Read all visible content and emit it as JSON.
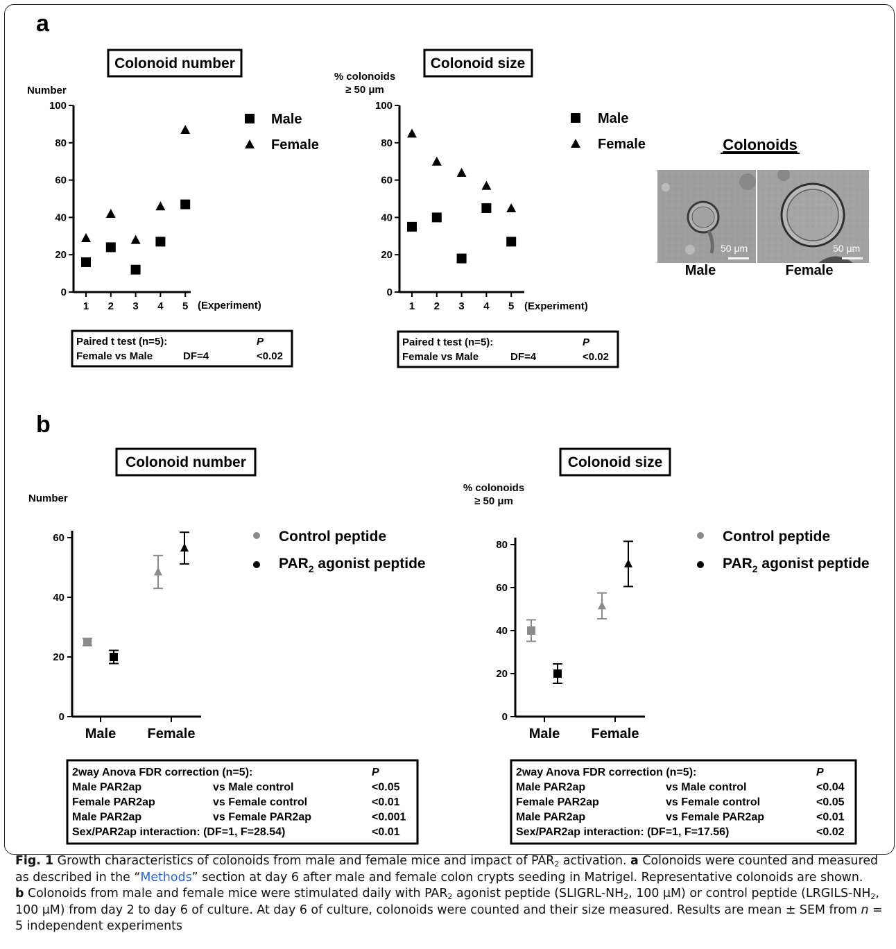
{
  "panel_a": {
    "label": "a",
    "number_title": "Colonoid number",
    "size_title": "Colonoid size",
    "number_ylabel": "Number",
    "size_ylabel_1": "% colonoids",
    "size_ylabel_2": "≥ 50 μm",
    "xlabel": "(Experiment)",
    "legend": [
      "Male",
      "Female"
    ],
    "images_title": "Colonoids",
    "image_labels": [
      "Male",
      "Female"
    ],
    "scalebar": "50 μm",
    "stats_box": {
      "title": "Paired t test (n=5):",
      "p_header": "P",
      "row_label": "Female vs Male",
      "row_df": "DF=4",
      "row_p": "<0.02"
    }
  },
  "panel_b": {
    "label": "b",
    "number_title": "Colonoid number",
    "size_title": "Colonoid size",
    "number_ylabel": "Number",
    "size_ylabel_1": "% colonoids",
    "size_ylabel_2": "≥ 50 μm",
    "legend_control": "Control peptide",
    "legend_par_prefix": "PAR",
    "legend_par_sub": "2",
    "legend_par_suffix": " agonist peptide",
    "left_box": {
      "title": "2way Anova FDR correction (n=5):",
      "p_header": "P",
      "rows": [
        [
          "Male PAR2ap",
          "vs Male control",
          "<0.05"
        ],
        [
          "Female PAR2ap",
          "vs Female control",
          "<0.01"
        ],
        [
          "Male PAR2ap",
          "vs Female PAR2ap",
          "<0.001"
        ],
        [
          "Sex/PAR2ap  interaction: (DF=1, F=28.54)",
          "",
          "<0.01"
        ]
      ]
    },
    "right_box": {
      "title": "2way Anova FDR correction (n=5):",
      "p_header": "P",
      "rows": [
        [
          "Male PAR2ap",
          "vs Male control",
          "<0.04"
        ],
        [
          "Female PAR2ap",
          "vs Female control",
          "<0.05"
        ],
        [
          "Male PAR2ap",
          "vs Female PAR2ap",
          "<0.01"
        ],
        [
          "Sex/PAR2ap  interaction: (DF=1, F=17.56)",
          "",
          "<0.02"
        ]
      ]
    }
  },
  "colors": {
    "control": "#8a8a8a",
    "agonist": "#000000"
  },
  "caption": {
    "fig_label": "Fig. 1",
    "title_text": " Growth characteristics of colonoids from male and female mice and impact of PAR",
    "title_sub": "2",
    "title_end": " activation. ",
    "a_label": "a",
    "a_text_1": " Colonoids were counted and measured as described in the “",
    "methods_link": "Methods",
    "a_text_2": "” section at day 6 after male and female colon crypts seeding in Matrigel. Representative colonoids are shown.",
    "b_label": "b",
    "b_text_1": " Colonoids from male and female mice were stimulated daily with PAR",
    "b_sub_1": "2",
    "b_text_2": " agonist peptide (SLIGRL-NH",
    "b_sub_2": "2",
    "b_text_3": ", 100 μM) or control peptide (LRGILS-NH",
    "b_sub_3": "2",
    "b_text_4": ", 100 μM) from day 2 to day 6 of culture. At day 6 of culture, colonoids were counted and their size measured. Results are mean ± SEM from ",
    "b_n": "n",
    "b_text_5": " = 5 independent experiments"
  },
  "chart_data": [
    {
      "type": "scatter",
      "title": "Colonoid number",
      "ylabel": "Number",
      "xlabel": "(Experiment)",
      "x": [
        1,
        2,
        3,
        4,
        5
      ],
      "ylim": [
        0,
        100
      ],
      "yticks": [
        0,
        20,
        40,
        60,
        80,
        100
      ],
      "series": [
        {
          "name": "Male",
          "marker": "square",
          "values": [
            16,
            24,
            12,
            27,
            47
          ]
        },
        {
          "name": "Female",
          "marker": "triangle",
          "values": [
            29,
            42,
            28,
            46,
            87
          ]
        }
      ]
    },
    {
      "type": "scatter",
      "title": "Colonoid size",
      "ylabel": "% colonoids ≥ 50 μm",
      "xlabel": "(Experiment)",
      "x": [
        1,
        2,
        3,
        4,
        5
      ],
      "ylim": [
        0,
        100
      ],
      "yticks": [
        0,
        20,
        40,
        60,
        80,
        100
      ],
      "series": [
        {
          "name": "Male",
          "marker": "square",
          "values": [
            35,
            40,
            18,
            45,
            27
          ]
        },
        {
          "name": "Female",
          "marker": "triangle",
          "values": [
            85,
            70,
            64,
            57,
            45
          ]
        }
      ]
    },
    {
      "type": "scatter",
      "title": "Colonoid number",
      "ylabel": "Number",
      "categories": [
        "Male",
        "Female"
      ],
      "ylim": [
        0,
        60
      ],
      "yticks": [
        0,
        20,
        40,
        60
      ],
      "series": [
        {
          "name": "Control peptide",
          "mean": [
            25,
            48.5
          ],
          "sem": [
            1.2,
            5.5
          ]
        },
        {
          "name": "PAR2 agonist peptide",
          "mean": [
            20,
            56.5
          ],
          "sem": [
            2.2,
            5.3
          ]
        }
      ]
    },
    {
      "type": "scatter",
      "title": "Colonoid size",
      "ylabel": "% colonoids ≥ 50 μm",
      "categories": [
        "Male",
        "Female"
      ],
      "ylim": [
        0,
        80
      ],
      "yticks": [
        0,
        20,
        40,
        60,
        80
      ],
      "series": [
        {
          "name": "Control peptide",
          "mean": [
            40,
            51.5
          ],
          "sem": [
            5,
            6
          ]
        },
        {
          "name": "PAR2 agonist peptide",
          "mean": [
            20,
            71
          ],
          "sem": [
            4.5,
            10.5
          ]
        }
      ]
    }
  ]
}
